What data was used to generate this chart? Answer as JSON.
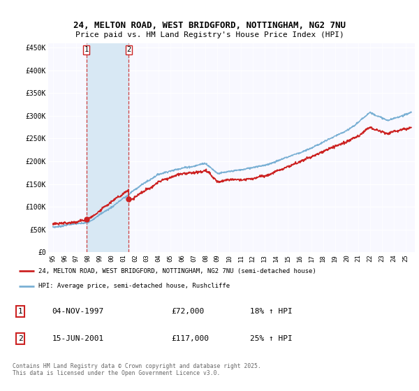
{
  "title_line1": "24, MELTON ROAD, WEST BRIDGFORD, NOTTINGHAM, NG2 7NU",
  "title_line2": "Price paid vs. HM Land Registry's House Price Index (HPI)",
  "background_color": "#ffffff",
  "plot_bg_color": "#f8f8ff",
  "legend_label_red": "24, MELTON ROAD, WEST BRIDGFORD, NOTTINGHAM, NG2 7NU (semi-detached house)",
  "legend_label_blue": "HPI: Average price, semi-detached house, Rushcliffe",
  "transaction1_date": "04-NOV-1997",
  "transaction1_price": "£72,000",
  "transaction1_hpi": "18% ↑ HPI",
  "transaction2_date": "15-JUN-2001",
  "transaction2_price": "£117,000",
  "transaction2_hpi": "25% ↑ HPI",
  "footer": "Contains HM Land Registry data © Crown copyright and database right 2025.\nThis data is licensed under the Open Government Licence v3.0.",
  "ylim": [
    0,
    460000
  ],
  "yticks": [
    0,
    50000,
    100000,
    150000,
    200000,
    250000,
    300000,
    350000,
    400000,
    450000
  ],
  "ytick_labels": [
    "£0",
    "£50K",
    "£100K",
    "£150K",
    "£200K",
    "£250K",
    "£300K",
    "£350K",
    "£400K",
    "£450K"
  ],
  "red_color": "#cc2222",
  "blue_color": "#7ab0d4",
  "transaction1_x": 1997.84,
  "transaction1_y": 72000,
  "transaction2_x": 2001.46,
  "transaction2_y": 117000,
  "xlim_start": 1994.6,
  "xlim_end": 2025.8,
  "shade_color": "#d8e8f4",
  "grid_color": "#ccccdd"
}
